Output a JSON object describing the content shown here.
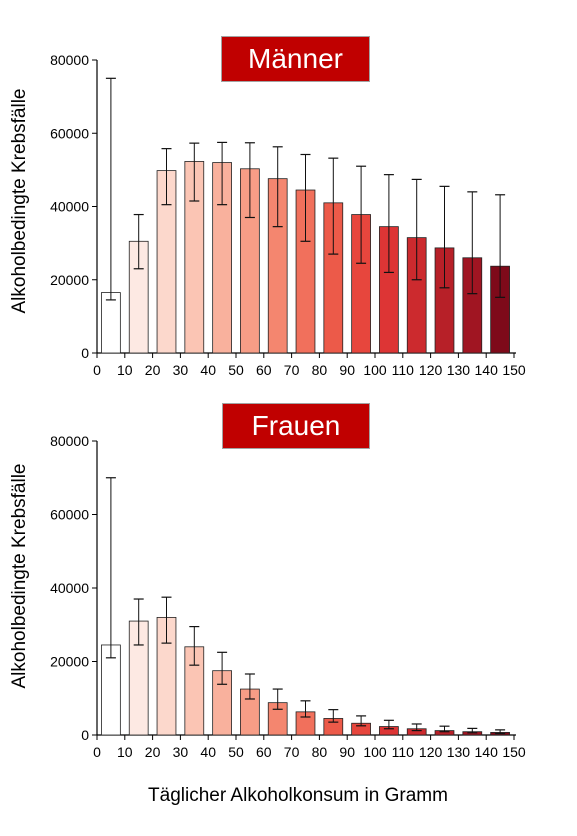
{
  "xlabel": "Täglicher Alkoholkonsum in Gramm",
  "chart_data": [
    {
      "type": "bar",
      "title": "Männer",
      "ylabel": "Alkoholbedingte Krebsfälle",
      "ylim": [
        0,
        80000
      ],
      "yticks": [
        0,
        20000,
        40000,
        60000,
        80000
      ],
      "ytick_labels": [
        "0",
        "20000",
        "40000",
        "60000",
        "80000"
      ],
      "xlim": [
        0,
        150
      ],
      "xticks": [
        0,
        10,
        20,
        30,
        40,
        50,
        60,
        70,
        80,
        90,
        100,
        110,
        120,
        130,
        140,
        150
      ],
      "categories": [
        5,
        15,
        25,
        35,
        45,
        55,
        65,
        75,
        85,
        95,
        105,
        115,
        125,
        135,
        145
      ],
      "values": [
        16500,
        30500,
        49800,
        52300,
        52000,
        50300,
        47600,
        44500,
        41000,
        37800,
        34500,
        31500,
        28700,
        26000,
        23700
      ],
      "error_low": [
        14500,
        23000,
        40500,
        41500,
        40500,
        37000,
        34500,
        30500,
        27000,
        24500,
        22000,
        20000,
        17800,
        16200,
        15200
      ],
      "error_high": [
        75000,
        37800,
        55800,
        57300,
        57500,
        57400,
        56300,
        54200,
        53200,
        51000,
        48700,
        47400,
        45500,
        44000,
        43200
      ],
      "colors": [
        "#ffffff",
        "#fde9e3",
        "#fcd8cc",
        "#fbc5b4",
        "#f9b19d",
        "#f79d86",
        "#f4866f",
        "#f1705c",
        "#ec5a49",
        "#e7463d",
        "#dd3535",
        "#cc2a2e",
        "#b72028",
        "#a01522",
        "#7e0a1a"
      ]
    },
    {
      "type": "bar",
      "title": "Frauen",
      "ylabel": "Alkoholbedingte Krebsfälle",
      "ylim": [
        0,
        80000
      ],
      "yticks": [
        0,
        20000,
        40000,
        60000,
        80000
      ],
      "ytick_labels": [
        "0",
        "20000",
        "40000",
        "60000",
        "80000"
      ],
      "xlim": [
        0,
        150
      ],
      "xticks": [
        0,
        10,
        20,
        30,
        40,
        50,
        60,
        70,
        80,
        90,
        100,
        110,
        120,
        130,
        140,
        150
      ],
      "categories": [
        5,
        15,
        25,
        35,
        45,
        55,
        65,
        75,
        85,
        95,
        105,
        115,
        125,
        135,
        145
      ],
      "values": [
        24500,
        31000,
        32000,
        24000,
        17500,
        12500,
        8800,
        6300,
        4500,
        3200,
        2300,
        1700,
        1200,
        900,
        700
      ],
      "error_low": [
        21000,
        24500,
        25000,
        19000,
        13800,
        9800,
        7000,
        4900,
        3500,
        2500,
        1700,
        1200,
        900,
        600,
        400
      ],
      "error_high": [
        70000,
        37000,
        37500,
        29500,
        22500,
        16600,
        12500,
        9300,
        6900,
        5200,
        4000,
        3000,
        2400,
        1800,
        1400
      ],
      "colors": [
        "#ffffff",
        "#fde9e3",
        "#fcd8cc",
        "#fbc5b4",
        "#f9b19d",
        "#f79d86",
        "#f4866f",
        "#f1705c",
        "#ec5a49",
        "#e7463d",
        "#dd3535",
        "#cc2a2e",
        "#b72028",
        "#a01522",
        "#7e0a1a"
      ]
    }
  ]
}
